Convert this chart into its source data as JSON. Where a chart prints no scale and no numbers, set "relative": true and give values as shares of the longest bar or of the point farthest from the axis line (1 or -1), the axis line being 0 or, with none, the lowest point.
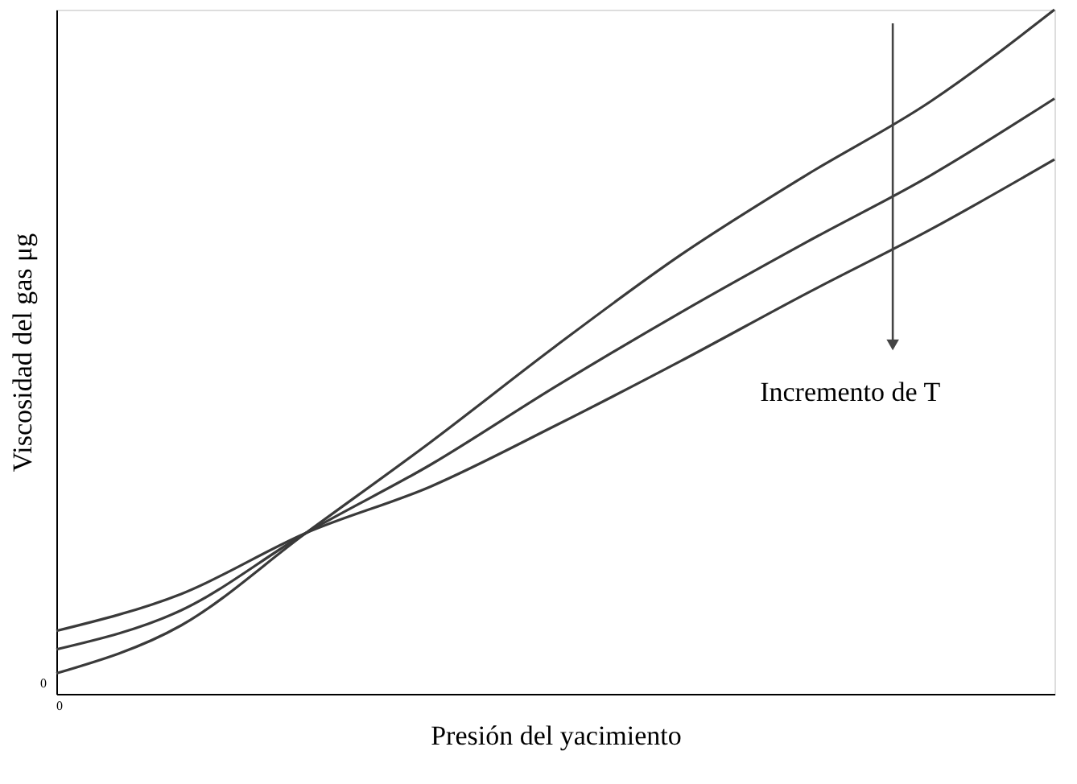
{
  "chart_data": {
    "type": "line",
    "relative": true,
    "xlabel": "Presión del yacimiento",
    "ylabel": "Viscosidad del gas μg",
    "categories": [
      null,
      null,
      null,
      null,
      null,
      null,
      null,
      null,
      null
    ],
    "series": [
      {
        "color": "#3a3a3a",
        "values": [
          0.03,
          0.1,
          0.235,
          0.368,
          0.508,
          0.641,
          0.757,
          0.865,
          1
        ]
      },
      {
        "color": "#3a3a3a",
        "values": [
          0.065,
          0.122,
          0.235,
          0.335,
          0.449,
          0.557,
          0.659,
          0.757,
          0.87
        ]
      },
      {
        "color": "#3a3a3a",
        "values": [
          0.092,
          0.146,
          0.235,
          0.303,
          0.392,
          0.486,
          0.584,
          0.678,
          0.781
        ]
      }
    ],
    "annotations": [
      "Incremento de T",
      "0",
      "0"
    ],
    "grid": false,
    "legend": false,
    "marker": "none",
    "line_style": "solid"
  }
}
